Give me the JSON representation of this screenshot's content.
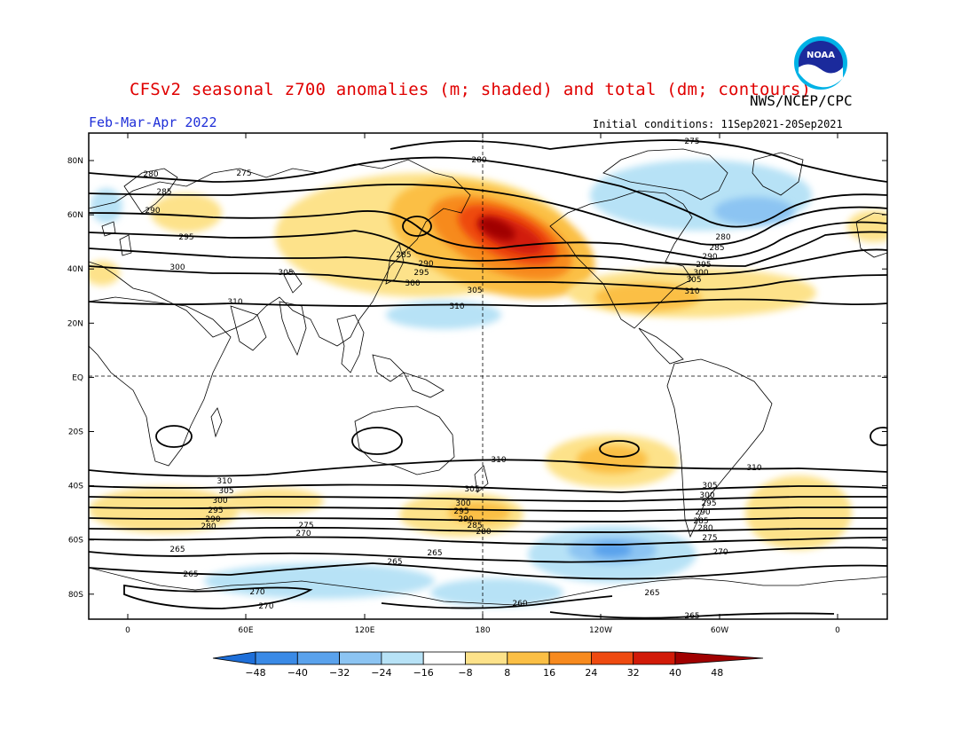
{
  "header": {
    "title": "CFSv2 seasonal z700 anomalies (m; shaded) and total (dm; contours)",
    "agency": "NWS/NCEP/CPC",
    "period": "Feb-Mar-Apr 2022",
    "initial_conditions": "Initial conditions: 11Sep2021-20Sep2021",
    "logo_text": "NOAA"
  },
  "axes": {
    "lat_labels": [
      "80N",
      "60N",
      "40N",
      "20N",
      "EQ",
      "20S",
      "40S",
      "60S",
      "80S"
    ],
    "lon_labels": [
      "0",
      "60E",
      "120E",
      "180",
      "120W",
      "60W",
      "0"
    ]
  },
  "colorbar": {
    "levels": [
      "-48",
      "-40",
      "-32",
      "-24",
      "-16",
      "-8",
      "8",
      "16",
      "24",
      "32",
      "40",
      "48"
    ],
    "colors": [
      "#1e6fd9",
      "#3a8ae6",
      "#5aa2ec",
      "#8cc4f2",
      "#b7e2f6",
      "#ffffff",
      "#fde28a",
      "#fbbf45",
      "#f78a1e",
      "#ee4a10",
      "#d21a08",
      "#a00000"
    ]
  },
  "contour_labels": {
    "nh": [
      "275",
      "280",
      "285",
      "290",
      "295",
      "300",
      "305",
      "310"
    ],
    "sh": [
      "310",
      "305",
      "300",
      "295",
      "290",
      "285",
      "280",
      "275",
      "270",
      "265",
      "260"
    ]
  }
}
